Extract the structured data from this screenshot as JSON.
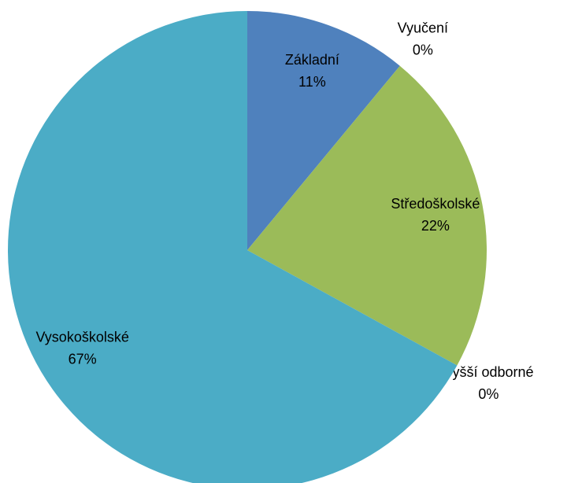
{
  "chart_data": {
    "type": "pie",
    "categories": [
      "Základní",
      "Vyučení",
      "Středoškolské",
      "Vyšší odborné",
      "Vysokoškolské"
    ],
    "values": [
      11,
      0,
      22,
      0,
      67
    ],
    "value_labels": [
      "11%",
      "0%",
      "22%",
      "0%",
      "67%"
    ],
    "colors": [
      "#4f81bd",
      "#c0504d",
      "#9bbb59",
      "#8064a2",
      "#4bacc6"
    ]
  }
}
